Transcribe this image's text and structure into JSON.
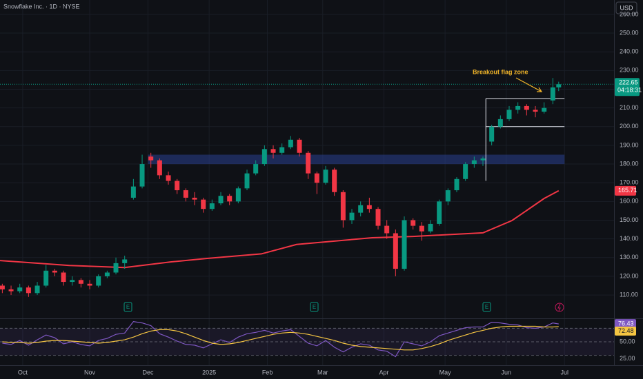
{
  "chart_data": {
    "type": "candlestick",
    "title": "Snowflake Inc. · 1D · NYSE",
    "currency": "USD",
    "countdown": "04:18:31",
    "annotation": "Breakout flag zone",
    "events": [
      "E",
      "E",
      "E"
    ],
    "xlim": [
      -7.8,
      203
    ],
    "xticks": [
      {
        "value": 0,
        "label": "Oct"
      },
      {
        "value": 23,
        "label": "Nov"
      },
      {
        "value": 43,
        "label": "Dec"
      },
      {
        "value": 64,
        "label": "2025"
      },
      {
        "value": 84,
        "label": "Feb"
      },
      {
        "value": 103,
        "label": "Mar"
      },
      {
        "value": 124,
        "label": "Apr"
      },
      {
        "value": 145,
        "label": "May"
      },
      {
        "value": 166,
        "label": "Jun"
      },
      {
        "value": 186,
        "label": "Jul"
      }
    ],
    "ylim": [
      97.5,
      267.7
    ],
    "yticks": [
      {
        "value": 110,
        "label": "110.00"
      },
      {
        "value": 120,
        "label": "120.00"
      },
      {
        "value": 130,
        "label": "130.00"
      },
      {
        "value": 140,
        "label": "140.00"
      },
      {
        "value": 150,
        "label": "150.00"
      },
      {
        "value": 160,
        "label": "160.00"
      },
      {
        "value": 170,
        "label": "170.00"
      },
      {
        "value": 180,
        "label": "180.00"
      },
      {
        "value": 190,
        "label": "190.00"
      },
      {
        "value": 200,
        "label": "200.00"
      },
      {
        "value": 210,
        "label": "210.00"
      },
      {
        "value": 220,
        "label": "220.00"
      },
      {
        "value": 230,
        "label": "230.00"
      },
      {
        "value": 240,
        "label": "240.00"
      },
      {
        "value": 250,
        "label": "250.00"
      },
      {
        "value": 260,
        "label": "260.00"
      }
    ],
    "up_color": "#089981",
    "down_color": "#f23645",
    "grid": true,
    "x": [
      -7,
      -4,
      -1,
      2,
      5,
      8,
      11,
      14,
      17,
      20,
      23,
      26,
      29,
      32,
      35,
      38,
      41,
      44,
      47,
      50,
      53,
      56,
      59,
      62,
      65,
      68,
      71,
      74,
      77,
      80,
      83,
      86,
      89,
      92,
      95,
      98,
      101,
      104,
      107,
      110,
      113,
      116,
      119,
      122,
      125,
      128,
      131,
      134,
      137,
      140,
      143,
      146,
      149,
      152,
      155,
      158,
      161,
      164,
      167,
      170,
      173,
      176,
      179,
      182,
      184
    ],
    "ohlc": [
      [
        115,
        116,
        111,
        113
      ],
      [
        113,
        115,
        110,
        112
      ],
      [
        112,
        116,
        111,
        114
      ],
      [
        114,
        115,
        109,
        111
      ],
      [
        111,
        117,
        110,
        115
      ],
      [
        115,
        126,
        114,
        123
      ],
      [
        123,
        124,
        120,
        122
      ],
      [
        122,
        123,
        115,
        117
      ],
      [
        117,
        120,
        115,
        118
      ],
      [
        118,
        119,
        114,
        116
      ],
      [
        116,
        118,
        113,
        115
      ],
      [
        115,
        121,
        114,
        120
      ],
      [
        120,
        123,
        119,
        122
      ],
      [
        122,
        130,
        121,
        127
      ],
      [
        127,
        131,
        124,
        129
      ],
      [
        162,
        172,
        161,
        168
      ],
      [
        168,
        185,
        167,
        180
      ],
      [
        184,
        186,
        178,
        182
      ],
      [
        182,
        183,
        172,
        174
      ],
      [
        174,
        176,
        169,
        171
      ],
      [
        171,
        172,
        164,
        166
      ],
      [
        166,
        167,
        160,
        162
      ],
      [
        162,
        165,
        158,
        161
      ],
      [
        161,
        162,
        154,
        156
      ],
      [
        156,
        161,
        155,
        159
      ],
      [
        159,
        165,
        158,
        163
      ],
      [
        163,
        164,
        158,
        160
      ],
      [
        160,
        168,
        159,
        167
      ],
      [
        167,
        177,
        166,
        175
      ],
      [
        175,
        182,
        174,
        180
      ],
      [
        180,
        190,
        179,
        188
      ],
      [
        188,
        190,
        183,
        186
      ],
      [
        186,
        191,
        185,
        189
      ],
      [
        189,
        195,
        188,
        193
      ],
      [
        193,
        194,
        184,
        186
      ],
      [
        186,
        187,
        172,
        175
      ],
      [
        175,
        176,
        164,
        170
      ],
      [
        170,
        179,
        169,
        177
      ],
      [
        177,
        178,
        163,
        165
      ],
      [
        165,
        166,
        146,
        150
      ],
      [
        150,
        156,
        148,
        154
      ],
      [
        154,
        160,
        152,
        158
      ],
      [
        158,
        162,
        154,
        156
      ],
      [
        156,
        157,
        145,
        147
      ],
      [
        147,
        150,
        140,
        143
      ],
      [
        143,
        145,
        120,
        124
      ],
      [
        124,
        152,
        123,
        150
      ],
      [
        150,
        151,
        145,
        147
      ],
      [
        147,
        149,
        139,
        144
      ],
      [
        144,
        150,
        143,
        148
      ],
      [
        148,
        161,
        147,
        160
      ],
      [
        160,
        167,
        158,
        166
      ],
      [
        166,
        173,
        165,
        172
      ],
      [
        172,
        181,
        171,
        180
      ],
      [
        180,
        184,
        178,
        182
      ],
      [
        182,
        184,
        179,
        183
      ],
      [
        192,
        201,
        190,
        200
      ],
      [
        200,
        206,
        199,
        204
      ],
      [
        204,
        211,
        203,
        209
      ],
      [
        209,
        213,
        207,
        211
      ],
      [
        211,
        212,
        206,
        209
      ],
      [
        209,
        211,
        205,
        208
      ],
      [
        208,
        213,
        207,
        210
      ],
      [
        214,
        226,
        212,
        221
      ],
      [
        221,
        224,
        219,
        222.65
      ]
    ],
    "ma": {
      "color": "#f23645",
      "x": [
        -8,
        16,
        35,
        51,
        63,
        82,
        94,
        106,
        120,
        134,
        158,
        168,
        179,
        184
      ],
      "values": [
        128.4,
        125.8,
        124.7,
        127.7,
        129.5,
        132,
        137,
        138.7,
        140.6,
        141.3,
        143.2,
        149.8,
        161.6,
        165.71
      ]
    },
    "support_zone": {
      "x": [
        43,
        186
      ],
      "y": [
        180,
        185
      ],
      "color": "#2a3f8f"
    },
    "flag": {
      "x": [
        159,
        186
      ],
      "top": 215,
      "bottom": 200,
      "pole_low": 171
    },
    "rsi": {
      "ylim": [
        15.3,
        82.7
      ],
      "yticks": [
        {
          "value": 25,
          "label": "25.00"
        },
        {
          "value": 50,
          "label": "50.00"
        }
      ],
      "bands": [
        70,
        50,
        30
      ],
      "color": "#7e57c2",
      "ma_color": "#f5c542",
      "values": [
        48,
        46,
        52,
        45,
        53,
        60,
        56,
        47,
        50,
        46,
        44,
        52,
        55,
        61,
        63,
        80,
        78,
        74,
        62,
        57,
        51,
        46,
        45,
        41,
        47,
        53,
        49,
        57,
        62,
        64,
        67,
        63,
        66,
        68,
        58,
        48,
        44,
        52,
        42,
        35,
        42,
        47,
        45,
        38,
        36,
        28,
        50,
        47,
        44,
        50,
        59,
        63,
        67,
        71,
        72,
        72,
        79,
        78,
        76,
        75,
        71,
        70,
        72,
        78,
        76.43
      ],
      "ma": [
        50,
        49,
        49,
        48,
        49,
        51,
        52,
        52,
        51,
        50,
        49,
        48,
        49,
        51,
        53,
        57,
        62,
        66,
        68,
        68,
        66,
        62,
        57,
        52,
        48,
        46,
        47,
        49,
        52,
        55,
        58,
        61,
        63,
        64,
        63,
        61,
        58,
        55,
        52,
        48,
        45,
        43,
        42,
        41,
        40,
        39,
        38,
        38,
        40,
        43,
        47,
        52,
        56,
        60,
        64,
        67,
        70,
        72,
        73,
        73,
        73,
        73,
        72,
        72,
        72.48
      ]
    }
  }
}
